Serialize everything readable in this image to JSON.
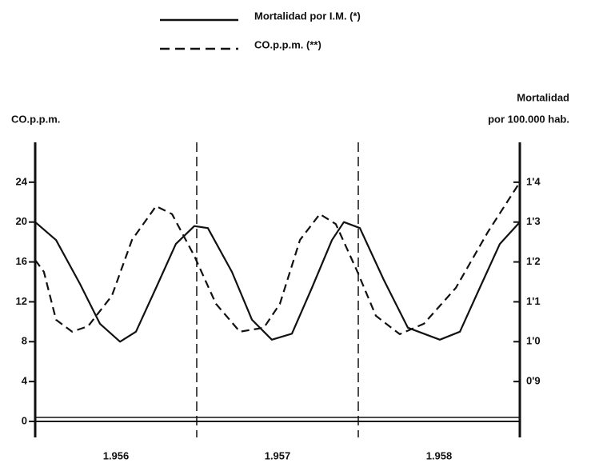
{
  "chart_data": {
    "type": "line",
    "ylabel": "CO.p.p.m.",
    "y2label": [
      "Mortalidad",
      "por 100.000 hab."
    ],
    "xlim": [
      1956,
      1959
    ],
    "xticks": [
      {
        "value": 1956.5,
        "label": "1.956"
      },
      {
        "value": 1957.5,
        "label": "1.957"
      },
      {
        "value": 1958.5,
        "label": "1.958"
      }
    ],
    "vlines": [
      1957,
      1958
    ],
    "ylim": [
      0,
      28
    ],
    "yticks": [
      0,
      4,
      8,
      12,
      16,
      20,
      24
    ],
    "y2lim": [
      0.8,
      1.5
    ],
    "y2ticks": [
      {
        "value": 0.9,
        "label": "0'9"
      },
      {
        "value": 1.0,
        "label": "1'0"
      },
      {
        "value": 1.1,
        "label": "1'1"
      },
      {
        "value": 1.2,
        "label": "1'2"
      },
      {
        "value": 1.3,
        "label": "1'3"
      },
      {
        "value": 1.4,
        "label": "1'4"
      }
    ],
    "series": [
      {
        "name": "Mortalidad por I.M. (*)",
        "color": "#111111",
        "dash": false,
        "axis": "y2",
        "x": [
          1956.0,
          1956.129,
          1956.277,
          1956.401,
          1956.525,
          1956.624,
          1956.748,
          1956.871,
          1956.985,
          1957.069,
          1957.218,
          1957.342,
          1957.465,
          1957.589,
          1957.713,
          1957.837,
          1957.911,
          1958.01,
          1958.158,
          1958.307,
          1958.505,
          1958.629,
          1958.752,
          1958.876,
          1959.0
        ],
        "values": [
          1.3,
          1.255,
          1.145,
          1.045,
          1.0,
          1.025,
          1.135,
          1.245,
          1.29,
          1.285,
          1.175,
          1.055,
          1.005,
          1.02,
          1.135,
          1.255,
          1.3,
          1.285,
          1.155,
          1.035,
          1.005,
          1.025,
          1.135,
          1.245,
          1.3
        ]
      },
      {
        "name": "CO.p.p.m. (**)",
        "color": "#111111",
        "dash": true,
        "axis": "y",
        "x": [
          1956.0,
          1956.054,
          1956.129,
          1956.228,
          1956.327,
          1956.475,
          1956.599,
          1956.748,
          1956.847,
          1956.985,
          1957.119,
          1957.267,
          1957.416,
          1957.515,
          1957.639,
          1957.762,
          1957.861,
          1957.995,
          1958.109,
          1958.257,
          1958.406,
          1958.604,
          1958.802,
          1959.0
        ],
        "values": [
          16.2,
          15.0,
          10.2,
          9.0,
          9.55,
          12.6,
          18.2,
          21.6,
          20.8,
          16.6,
          11.8,
          9.0,
          9.4,
          11.8,
          18.2,
          20.8,
          19.8,
          15.0,
          10.6,
          8.75,
          9.8,
          13.4,
          19.0,
          24.0
        ]
      }
    ]
  }
}
